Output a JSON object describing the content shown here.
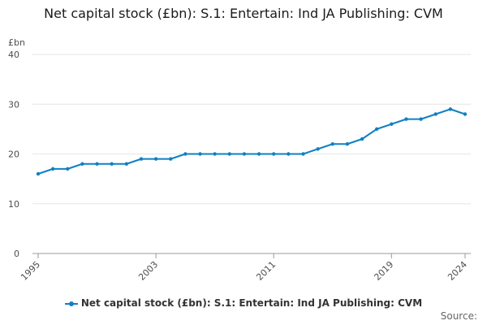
{
  "chart_data": {
    "type": "line",
    "title": "Net capital stock (£bn): S.1: Entertain: Ind JA Publishing: CVM",
    "ylabel": "£bn",
    "xlabel": "",
    "ylim": [
      0,
      40
    ],
    "yticks": [
      0,
      10,
      20,
      30,
      40
    ],
    "xticks": [
      1995,
      2003,
      2011,
      2019,
      2024
    ],
    "x": [
      1995,
      1996,
      1997,
      1998,
      1999,
      2000,
      2001,
      2002,
      2003,
      2004,
      2005,
      2006,
      2007,
      2008,
      2009,
      2010,
      2011,
      2012,
      2013,
      2014,
      2015,
      2016,
      2017,
      2018,
      2019,
      2020,
      2021,
      2022,
      2023,
      2024
    ],
    "series": [
      {
        "name": "Net capital stock (£bn): S.1: Entertain: Ind JA Publishing: CVM",
        "values": [
          16,
          17,
          17,
          18,
          18,
          18,
          18,
          19,
          19,
          19,
          20,
          20,
          20,
          20,
          20,
          20,
          20,
          20,
          20,
          21,
          22,
          22,
          23,
          25,
          26,
          27,
          27,
          28,
          29,
          28
        ]
      }
    ],
    "grid": true,
    "legend_position": "bottom",
    "colors": {
      "series": "#0f80c4",
      "grid": "#e6e6e6",
      "axis": "#999999"
    }
  },
  "footer": {
    "source_label": "Source:"
  }
}
